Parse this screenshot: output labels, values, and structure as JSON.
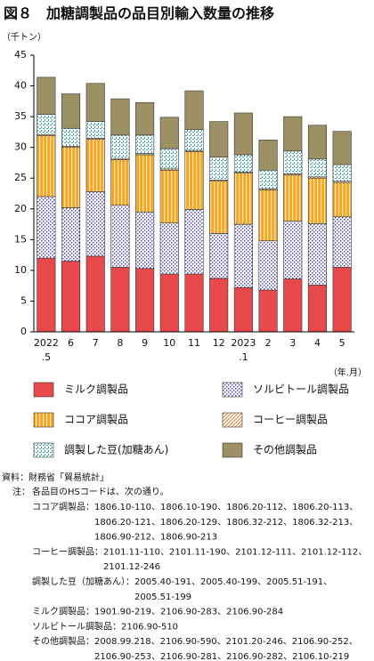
{
  "chart_data": {
    "type": "stacked_bar",
    "title": "図８　加糖調製品の品目別輸入数量の推移",
    "y_unit": "（千トン）",
    "x_unit": "（年.月）",
    "categories": [
      "2022",
      "6",
      "7",
      "8",
      "9",
      "10",
      "11",
      "12",
      "2023",
      "2",
      "3",
      "4",
      "5"
    ],
    "category_sublabels": [
      ".5",
      null,
      null,
      null,
      null,
      null,
      null,
      null,
      ".1",
      null,
      null,
      null,
      null
    ],
    "series": [
      {
        "name": "ミルク調製品",
        "color": "#e8494a",
        "pattern": "solid",
        "values": [
          12.0,
          11.5,
          12.3,
          10.5,
          10.3,
          9.4,
          9.4,
          8.7,
          7.2,
          6.8,
          8.6,
          7.6,
          10.5
        ]
      },
      {
        "name": "ソルビトール調製品",
        "color": "#4b4bb0",
        "pattern": "dots",
        "values": [
          10.0,
          8.7,
          10.5,
          10.1,
          9.2,
          8.3,
          10.5,
          7.3,
          10.3,
          8.0,
          9.4,
          10.0,
          8.2
        ]
      },
      {
        "name": "ココア調製品",
        "color": "#f6a623",
        "pattern": "vstripes",
        "values": [
          9.9,
          9.8,
          8.5,
          7.4,
          9.3,
          8.6,
          9.4,
          8.5,
          8.3,
          8.3,
          7.5,
          7.4,
          5.6
        ]
      },
      {
        "name": "コーヒー調製品",
        "color": "#d9823b",
        "pattern": "diagonal",
        "values": [
          0.2,
          0.2,
          0.2,
          0.2,
          0.2,
          0.2,
          0.2,
          0.2,
          0.2,
          0.2,
          0.2,
          0.2,
          0.2
        ]
      },
      {
        "name": "調製した豆(加糖あん)",
        "color": "#3aa6a6",
        "pattern": "checks",
        "values": [
          3.3,
          2.9,
          2.7,
          3.8,
          3.0,
          3.3,
          3.4,
          3.7,
          2.8,
          3.0,
          3.7,
          2.9,
          2.7
        ]
      },
      {
        "name": "その他調製品",
        "color": "#9c9164",
        "pattern": "solid",
        "values": [
          6.0,
          5.6,
          6.2,
          5.9,
          5.3,
          5.1,
          6.3,
          5.8,
          6.8,
          4.9,
          5.6,
          5.5,
          5.4
        ]
      }
    ],
    "ylim": [
      0,
      45
    ],
    "yticks": [
      0,
      5,
      10,
      15,
      20,
      25,
      30,
      35,
      40,
      45
    ],
    "grid": false
  },
  "notes": {
    "source": "資料：財務省「貿易統計」",
    "note_label": "注：",
    "note_intro": "各品目のHSコードは、次の通り。",
    "items": [
      {
        "label": "ココア調製品：",
        "lines": [
          "1806.10-110、1806.10-190、1806.20-112、1806.20-113、",
          "1806.20-121、1806.20-129、1806.32-212、1806.32-213、",
          "1806.90-212、1806.90-213"
        ]
      },
      {
        "label": "コーヒー調製品：",
        "lines": [
          "2101.11-110、2101.11-190、2101.12-111、2101.12-112、",
          "2101.12-246"
        ]
      },
      {
        "label": "調製した豆（加糖あん）：",
        "lines": [
          "2005.40-191、2005.40-199、2005.51-191、",
          "2005.51-199"
        ]
      },
      {
        "label": "ミルク調製品：",
        "lines": [
          "1901.90-219、2106.90-283、2106.90-284"
        ]
      },
      {
        "label": "ソルビトール調製品：",
        "lines": [
          "2106.90-510"
        ]
      },
      {
        "label": "その他調製品：",
        "lines": [
          "2008.99.218、2106.90-590、2101.20-246、2106.90-252、",
          "2106.90-253、2106.90-281、2106.90-282、2106.10-219"
        ]
      }
    ]
  }
}
